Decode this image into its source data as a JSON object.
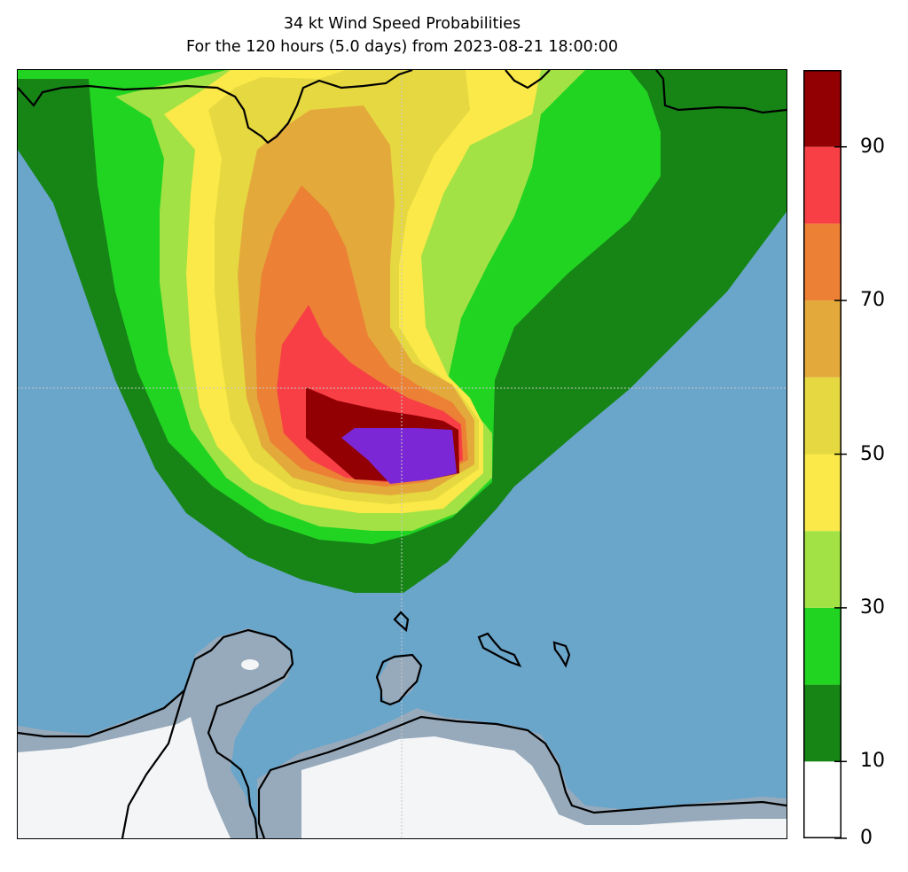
{
  "title": {
    "line1": "34 kt Wind Speed Probabilities",
    "line2": "For the 120 hours (5.0 days) from 2023-08-21 18:00:00"
  },
  "colorbar": {
    "levels": [
      0,
      10,
      20,
      30,
      40,
      50,
      60,
      70,
      80,
      90,
      100
    ],
    "tick_labels": [
      "0",
      "10",
      "30",
      "50",
      "70",
      "90"
    ],
    "tick_values": [
      0,
      10,
      30,
      50,
      70,
      90
    ],
    "colors": [
      "#ffffff",
      "#168516",
      "#22d422",
      "#a2e244",
      "#fae948",
      "#e6d840",
      "#e3aa3b",
      "#ec8035",
      "#f73f45",
      "#930004",
      "#7c27d6"
    ]
  },
  "map": {
    "ocean_color": "#6aa5ca",
    "land_color": "#97aabb",
    "land_interior_color": "#f4f5f7",
    "coastline_color": "#000000",
    "gridline_color": "#c8c8c8"
  }
}
